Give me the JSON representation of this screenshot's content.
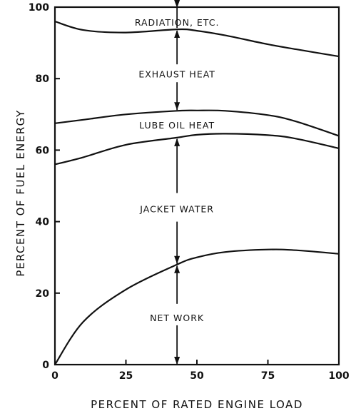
{
  "chart_data": {
    "type": "area",
    "xlabel": "PERCENT OF RATED ENGINE LOAD",
    "ylabel": "PERCENT OF FUEL ENERGY",
    "xlim": [
      0,
      100
    ],
    "ylim": [
      0,
      100
    ],
    "xticks": [
      "0",
      "25",
      "50",
      "75",
      "100"
    ],
    "yticks": [
      "0",
      "20",
      "40",
      "60",
      "80",
      "100"
    ],
    "grid": false,
    "x": [
      0,
      10,
      25,
      43,
      50,
      60,
      75,
      85,
      100
    ],
    "boundaries": [
      {
        "name": "net_work_top",
        "values": [
          0,
          12,
          21,
          28,
          30,
          31.5,
          32.2,
          32,
          31
        ]
      },
      {
        "name": "jacket_water_top",
        "values": [
          56,
          58,
          61.5,
          63.5,
          64.3,
          64.6,
          64.2,
          63.2,
          60.5
        ]
      },
      {
        "name": "lube_oil_top",
        "values": [
          67.5,
          68.5,
          70,
          71,
          71.1,
          71,
          69.8,
          68,
          64
        ]
      },
      {
        "name": "exhaust_top",
        "values": [
          96,
          93.6,
          92.9,
          93.8,
          93.4,
          92.1,
          89.6,
          88.2,
          86.2
        ]
      }
    ],
    "regions": [
      {
        "label": "NET WORK"
      },
      {
        "label": "JACKET WATER"
      },
      {
        "label": "LUBE OIL HEAT"
      },
      {
        "label": "EXHAUST HEAT"
      },
      {
        "label": "RADIATION, ETC."
      }
    ],
    "arrow_at_x": 43
  }
}
